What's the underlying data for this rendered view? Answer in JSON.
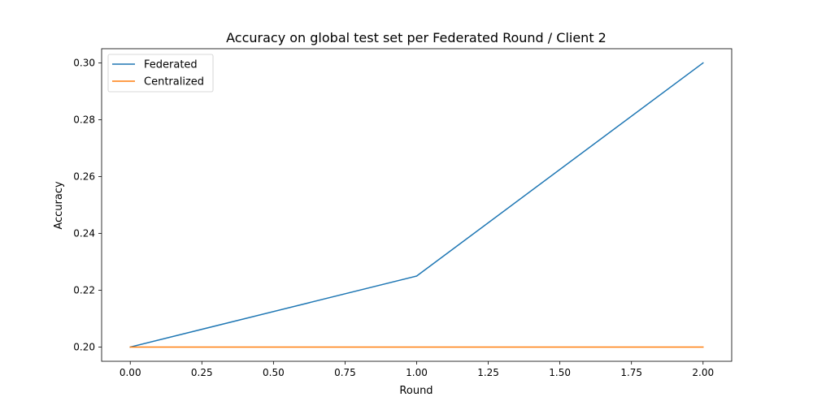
{
  "chart_data": {
    "type": "line",
    "title": "Accuracy on global test set per Federated Round / Client 2",
    "xlabel": "Round",
    "ylabel": "Accuracy",
    "xlim": [
      -0.1,
      2.1
    ],
    "ylim": [
      0.195,
      0.305
    ],
    "xticks": [
      0.0,
      0.25,
      0.5,
      0.75,
      1.0,
      1.25,
      1.5,
      1.75,
      2.0
    ],
    "xtick_labels": [
      "0.00",
      "0.25",
      "0.50",
      "0.75",
      "1.00",
      "1.25",
      "1.50",
      "1.75",
      "2.00"
    ],
    "yticks": [
      0.2,
      0.22,
      0.24,
      0.26,
      0.28,
      0.3
    ],
    "ytick_labels": [
      "0.20",
      "0.22",
      "0.24",
      "0.26",
      "0.28",
      "0.30"
    ],
    "grid": false,
    "legend_position": "top-left",
    "series": [
      {
        "name": "Federated",
        "color": "#1f77b4",
        "x": [
          0,
          1,
          2
        ],
        "y": [
          0.2,
          0.225,
          0.3
        ]
      },
      {
        "name": "Centralized",
        "color": "#ff7f0e",
        "x": [
          0,
          1,
          2
        ],
        "y": [
          0.2,
          0.2,
          0.2
        ]
      }
    ]
  }
}
